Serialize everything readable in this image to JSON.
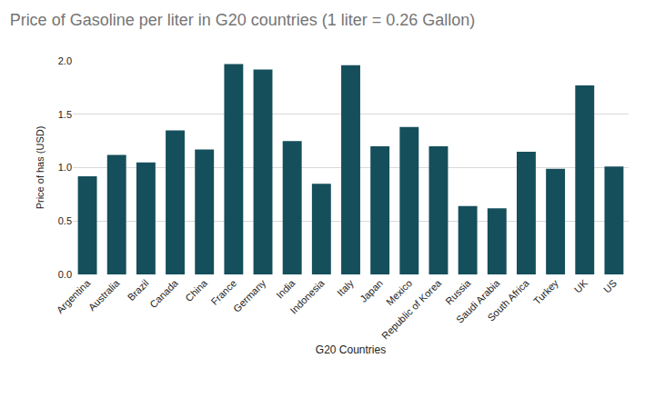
{
  "chart_data": {
    "type": "bar",
    "title": "Price of Gasoline per liter in G20 countries (1 liter = 0.26 Gallon)",
    "x_label": "G20 Countries",
    "y_label": "Price of has (USD)",
    "categories": [
      "Argentina",
      "Australia",
      "Brazil",
      "Canada",
      "China",
      "France",
      "Germany",
      "India",
      "Indonesia",
      "Italy",
      "Japan",
      "Mexico",
      "Republic of Korea",
      "Russia",
      "Saudi Arabia",
      "South Africa",
      "Turkey",
      "UK",
      "US"
    ],
    "values": [
      0.92,
      1.12,
      1.05,
      1.35,
      1.17,
      1.97,
      1.92,
      1.25,
      0.85,
      1.96,
      1.2,
      1.38,
      1.2,
      0.64,
      0.62,
      1.15,
      0.99,
      1.77,
      1.01
    ],
    "color": "#154f5b",
    "ylim": [
      0,
      2.0
    ],
    "yticks": [
      {
        "value": 0,
        "label": "0.0"
      },
      {
        "value": 0.5,
        "label": "0.5"
      },
      {
        "value": 1,
        "label": "1.0"
      },
      {
        "value": 1.5,
        "label": "1.5"
      },
      {
        "value": 2,
        "label": "2.0"
      }
    ],
    "grid": true
  }
}
